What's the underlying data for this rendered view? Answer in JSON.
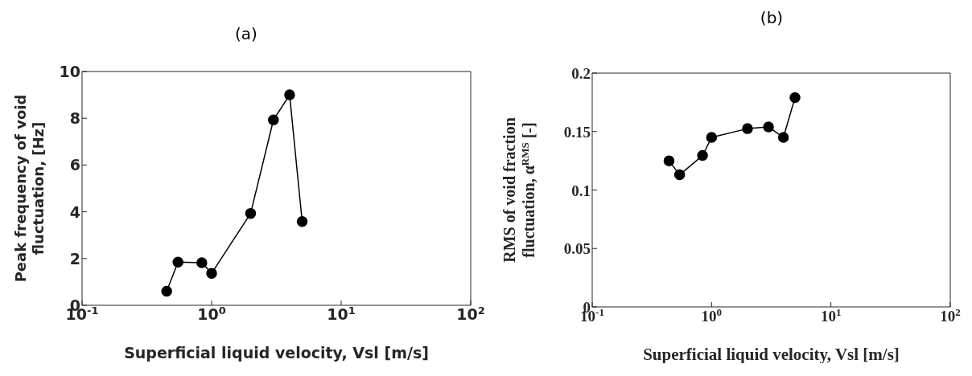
{
  "chart_data": [
    {
      "type": "line",
      "title": "(a)",
      "xlabel": "Superficial liquid velocity, Vsl [m/s]",
      "ylabel": "Peak frequency of void fluctuation, [Hz]",
      "log": "x",
      "marker": "circle",
      "line_style": "solid",
      "x": [
        0.45,
        0.55,
        0.84,
        1.0,
        2.0,
        3.0,
        4.0,
        5.0
      ],
      "values": [
        0.6,
        1.85,
        1.82,
        1.37,
        3.93,
        7.93,
        9.0,
        3.58
      ],
      "color": "#000000",
      "xlim": [
        0.1,
        100
      ],
      "xticks": [
        {
          "value": 0.1,
          "label": "10$^{-1}$"
        },
        {
          "value": 1,
          "label": "10$^{0}$"
        },
        {
          "value": 10,
          "label": "10$^{1}$"
        },
        {
          "value": 100,
          "label": "10$^{2}$"
        }
      ],
      "ylim": [
        0,
        10
      ],
      "yticks": [
        0,
        2,
        4,
        6,
        8,
        10
      ]
    },
    {
      "type": "line",
      "title": "(b)",
      "xlabel": "Superficial liquid velocity, Vsl [m/s]",
      "ylabel": "RMS of void fraction fluctuation, α$^{RMS}$ [-]",
      "log": "x",
      "marker": "circle",
      "line_style": "solid",
      "x": [
        0.44,
        0.54,
        0.84,
        1.0,
        2.0,
        3.0,
        4.0,
        5.0
      ],
      "values": [
        0.125,
        0.113,
        0.1295,
        0.145,
        0.1525,
        0.154,
        0.145,
        0.179
      ],
      "color": "#000000",
      "xlim": [
        0.1,
        100
      ],
      "xticks": [
        {
          "value": 0.1,
          "label": "10$^{-1}$"
        },
        {
          "value": 1,
          "label": "10$^{0}$"
        },
        {
          "value": 10,
          "label": "10$^{1}$"
        },
        {
          "value": 100,
          "label": "10$^{2}$"
        }
      ],
      "ylim": [
        0,
        0.2
      ],
      "yticks": [
        0,
        0.05,
        0.1,
        0.15,
        0.2
      ]
    }
  ]
}
